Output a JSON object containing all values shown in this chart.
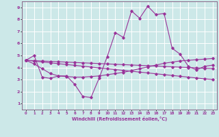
{
  "background_color": "#cce8e8",
  "line_color": "#993399",
  "grid_color": "#ffffff",
  "xlabel": "Windchill (Refroidissement éolien,°C)",
  "xlim": [
    -0.5,
    23.5
  ],
  "ylim": [
    0.5,
    9.5
  ],
  "xticks": [
    0,
    1,
    2,
    3,
    4,
    5,
    6,
    7,
    8,
    9,
    10,
    11,
    12,
    13,
    14,
    15,
    16,
    17,
    18,
    19,
    20,
    21,
    22,
    23
  ],
  "yticks": [
    1,
    2,
    3,
    4,
    5,
    6,
    7,
    8,
    9
  ],
  "y_main": [
    4.6,
    5.0,
    3.2,
    3.1,
    3.3,
    3.3,
    2.6,
    1.6,
    1.5,
    3.1,
    4.9,
    6.9,
    6.5,
    8.7,
    8.1,
    9.1,
    8.4,
    8.5,
    5.6,
    5.1,
    4.1,
    3.8,
    4.1,
    4.2
  ],
  "y_trend1": [
    4.6,
    4.53,
    4.46,
    4.39,
    4.32,
    4.25,
    4.18,
    4.11,
    4.04,
    3.97,
    3.9,
    3.83,
    3.76,
    3.69,
    3.62,
    3.55,
    3.48,
    3.41,
    3.34,
    3.27,
    3.2,
    3.13,
    3.06,
    3.0
  ],
  "y_trend2": [
    4.6,
    4.3,
    3.9,
    3.5,
    3.3,
    3.25,
    3.2,
    3.2,
    3.25,
    3.3,
    3.4,
    3.5,
    3.6,
    3.75,
    3.9,
    4.05,
    4.2,
    4.35,
    4.45,
    4.55,
    4.6,
    4.65,
    4.7,
    4.75
  ],
  "y_trend3": [
    4.6,
    4.57,
    4.54,
    4.51,
    4.48,
    4.45,
    4.42,
    4.39,
    4.36,
    4.33,
    4.3,
    4.27,
    4.24,
    4.21,
    4.18,
    4.15,
    4.12,
    4.09,
    4.06,
    4.03,
    4.0,
    3.97,
    3.94,
    3.91
  ]
}
